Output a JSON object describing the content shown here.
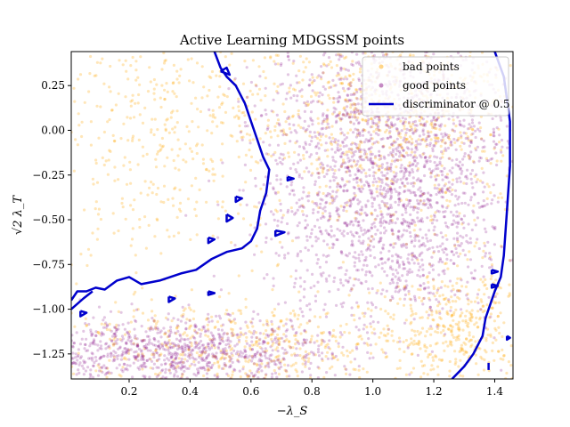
{
  "chart_data": {
    "type": "scatter",
    "title": "Active Learning MDGSSM points",
    "xlabel": "−λ_S",
    "ylabel": "√2 λ_T",
    "xlim": [
      0.01,
      1.46
    ],
    "ylim": [
      -1.39,
      0.44
    ],
    "x_ticks": [
      0.2,
      0.4,
      0.6,
      0.8,
      1.0,
      1.2,
      1.4
    ],
    "x_tick_labels": [
      "0.2",
      "0.4",
      "0.6",
      "0.8",
      "1.0",
      "1.2",
      "1.4"
    ],
    "y_ticks": [
      0.25,
      0.0,
      -0.25,
      -0.5,
      -0.75,
      -1.0,
      -1.25
    ],
    "y_tick_labels": [
      "0.25",
      "0.00",
      "−0.25",
      "−0.50",
      "−0.75",
      "−1.00",
      "−1.25"
    ],
    "grid": false,
    "legend_position": "top-right",
    "series": [
      {
        "name": "bad points",
        "kind": "scatter",
        "color": "#ffa500",
        "density_regions": [
          {
            "center": [
              0.3,
              0.05
            ],
            "spread": [
              0.28,
              0.45
            ],
            "weight": 0.25
          },
          {
            "center": [
              1.1,
              0.1
            ],
            "spread": [
              0.25,
              0.3
            ],
            "weight": 0.35
          },
          {
            "center": [
              0.55,
              -1.2
            ],
            "spread": [
              0.3,
              0.12
            ],
            "weight": 0.2
          },
          {
            "center": [
              1.3,
              -1.1
            ],
            "spread": [
              0.15,
              0.2
            ],
            "weight": 0.2
          }
        ]
      },
      {
        "name": "good points",
        "kind": "scatter",
        "color": "#800080",
        "density_regions": [
          {
            "center": [
              1.05,
              0.05
            ],
            "spread": [
              0.2,
              0.35
            ],
            "weight": 0.4
          },
          {
            "center": [
              1.05,
              -0.55
            ],
            "spread": [
              0.2,
              0.3
            ],
            "weight": 0.3
          },
          {
            "center": [
              0.35,
              -1.25
            ],
            "spread": [
              0.25,
              0.1
            ],
            "weight": 0.3
          }
        ]
      },
      {
        "name": "discriminator @ 0.5",
        "kind": "contour",
        "color": "#0000cc",
        "paths": [
          [
            [
              0.48,
              0.44
            ],
            [
              0.5,
              0.35
            ],
            [
              0.52,
              0.3
            ],
            [
              0.55,
              0.25
            ],
            [
              0.58,
              0.15
            ],
            [
              0.6,
              0.05
            ],
            [
              0.62,
              -0.05
            ],
            [
              0.64,
              -0.15
            ],
            [
              0.66,
              -0.22
            ],
            [
              0.65,
              -0.35
            ],
            [
              0.63,
              -0.45
            ],
            [
              0.62,
              -0.55
            ],
            [
              0.6,
              -0.62
            ],
            [
              0.57,
              -0.66
            ],
            [
              0.52,
              -0.68
            ],
            [
              0.47,
              -0.72
            ],
            [
              0.42,
              -0.78
            ],
            [
              0.37,
              -0.8
            ],
            [
              0.3,
              -0.84
            ],
            [
              0.24,
              -0.86
            ],
            [
              0.2,
              -0.82
            ],
            [
              0.16,
              -0.84
            ],
            [
              0.12,
              -0.89
            ],
            [
              0.09,
              -0.88
            ],
            [
              0.06,
              -0.9
            ],
            [
              0.03,
              -0.9
            ],
            [
              0.01,
              -0.95
            ]
          ],
          [
            [
              0.01,
              -1.0
            ],
            [
              0.05,
              -0.94
            ],
            [
              0.08,
              -0.9
            ]
          ],
          [
            [
              1.4,
              0.44
            ],
            [
              1.43,
              0.3
            ],
            [
              1.45,
              0.05
            ],
            [
              1.45,
              -0.2
            ],
            [
              1.44,
              -0.45
            ],
            [
              1.43,
              -0.7
            ],
            [
              1.42,
              -0.82
            ],
            [
              1.4,
              -0.9
            ],
            [
              1.38,
              -1.0
            ],
            [
              1.37,
              -1.05
            ],
            [
              1.36,
              -1.15
            ],
            [
              1.33,
              -1.25
            ],
            [
              1.3,
              -1.32
            ],
            [
              1.26,
              -1.39
            ]
          ],
          [
            [
              0.5,
              0.33
            ],
            [
              0.53,
              0.31
            ],
            [
              0.52,
              0.35
            ],
            [
              0.5,
              0.33
            ]
          ],
          [
            [
              0.55,
              -0.37
            ],
            [
              0.57,
              -0.38
            ],
            [
              0.55,
              -0.4
            ],
            [
              0.55,
              -0.37
            ]
          ],
          [
            [
              0.52,
              -0.47
            ],
            [
              0.54,
              -0.49
            ],
            [
              0.52,
              -0.51
            ],
            [
              0.52,
              -0.47
            ]
          ],
          [
            [
              0.46,
              -0.6
            ],
            [
              0.48,
              -0.61
            ],
            [
              0.46,
              -0.63
            ],
            [
              0.46,
              -0.6
            ]
          ],
          [
            [
              0.68,
              -0.56
            ],
            [
              0.71,
              -0.57
            ],
            [
              0.68,
              -0.59
            ],
            [
              0.68,
              -0.56
            ]
          ],
          [
            [
              0.72,
              -0.26
            ],
            [
              0.74,
              -0.27
            ],
            [
              0.72,
              -0.28
            ],
            [
              0.72,
              -0.26
            ]
          ],
          [
            [
              0.46,
              -0.9
            ],
            [
              0.48,
              -0.91
            ],
            [
              0.46,
              -0.92
            ],
            [
              0.46,
              -0.9
            ]
          ],
          [
            [
              0.33,
              -0.93
            ],
            [
              0.35,
              -0.94
            ],
            [
              0.33,
              -0.96
            ],
            [
              0.33,
              -0.93
            ]
          ],
          [
            [
              0.04,
              -1.01
            ],
            [
              0.06,
              -1.02
            ],
            [
              0.04,
              -1.04
            ],
            [
              0.04,
              -1.01
            ]
          ],
          [
            [
              1.39,
              -0.78
            ],
            [
              1.41,
              -0.79
            ],
            [
              1.39,
              -0.8
            ],
            [
              1.39,
              -0.78
            ]
          ],
          [
            [
              1.39,
              -0.86
            ],
            [
              1.41,
              -0.87
            ],
            [
              1.39,
              -0.88
            ],
            [
              1.39,
              -0.86
            ]
          ],
          [
            [
              1.44,
              -1.15
            ],
            [
              1.45,
              -1.16
            ],
            [
              1.44,
              -1.17
            ],
            [
              1.44,
              -1.15
            ]
          ],
          [
            [
              1.38,
              -1.3
            ],
            [
              1.38,
              -1.34
            ]
          ]
        ]
      }
    ]
  }
}
